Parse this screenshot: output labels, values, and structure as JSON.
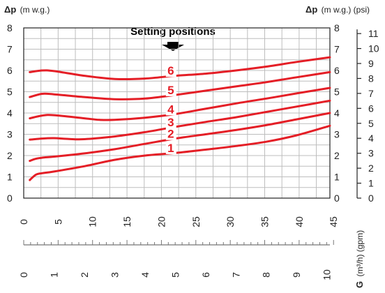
{
  "chart_data": {
    "type": "line",
    "title": "Setting positions",
    "ylabel_left_symbol": "Δp",
    "ylabel_left_unit": "(m w.g.)",
    "ylabel_right_symbol": "Δp",
    "ylabel_right_unit": "(m w.g.) (psi)",
    "xlabel_symbol": "G",
    "xlabel_unit": "(m³/h) (gpm)",
    "ylim": [
      0,
      8
    ],
    "xlim_m3h": [
      0,
      10.1
    ],
    "x_ticks_m3h": [
      "0",
      "1",
      "2",
      "3",
      "4",
      "5",
      "6",
      "7",
      "8",
      "9",
      "10"
    ],
    "x_ticks_gpm": [
      "0",
      "5",
      "10",
      "15",
      "20",
      "25",
      "30",
      "35",
      "40",
      "45"
    ],
    "gpm_per_m3h": 4.403,
    "y_ticks": [
      "0",
      "1",
      "2",
      "3",
      "4",
      "5",
      "6",
      "7",
      "8"
    ],
    "psi_ticks": [
      "0",
      "1",
      "2",
      "3",
      "4",
      "5",
      "6",
      "7",
      "8",
      "9",
      "10",
      "11"
    ],
    "psi_per_mwg": 1.4223,
    "grid": true,
    "line_color": "#e41e26",
    "series": [
      {
        "name": "1",
        "x": [
          0.2,
          0.4,
          0.6,
          1,
          2,
          3,
          4,
          5,
          6,
          7,
          8,
          9,
          10.1
        ],
        "y": [
          0.85,
          1.1,
          1.17,
          1.25,
          1.5,
          1.8,
          2.0,
          2.12,
          2.28,
          2.45,
          2.65,
          2.95,
          3.4
        ]
      },
      {
        "name": "2",
        "x": [
          0.2,
          0.4,
          0.6,
          1,
          2,
          3,
          4,
          5,
          6,
          7,
          8,
          9,
          10.1
        ],
        "y": [
          1.75,
          1.85,
          1.9,
          1.95,
          2.1,
          2.3,
          2.55,
          2.8,
          3.0,
          3.2,
          3.43,
          3.7,
          4.0
        ]
      },
      {
        "name": "3",
        "x": [
          0.2,
          0.6,
          1,
          1.5,
          2,
          3,
          4,
          5,
          6,
          7,
          8,
          9,
          10.1
        ],
        "y": [
          2.75,
          2.8,
          2.82,
          2.78,
          2.77,
          2.9,
          3.1,
          3.35,
          3.58,
          3.8,
          4.05,
          4.3,
          4.58
        ]
      },
      {
        "name": "4",
        "x": [
          0.2,
          0.6,
          1,
          2,
          2.5,
          3,
          4,
          5,
          6,
          7,
          8,
          9,
          10.1
        ],
        "y": [
          3.75,
          3.88,
          3.9,
          3.75,
          3.68,
          3.68,
          3.78,
          3.95,
          4.2,
          4.45,
          4.68,
          4.92,
          5.18
        ]
      },
      {
        "name": "5",
        "x": [
          0.2,
          0.6,
          1,
          2,
          3,
          4,
          5,
          6,
          7,
          8,
          9,
          10.1
        ],
        "y": [
          4.75,
          4.9,
          4.88,
          4.75,
          4.65,
          4.68,
          4.85,
          5.05,
          5.25,
          5.45,
          5.68,
          5.92
        ]
      },
      {
        "name": "6",
        "x": [
          0.2,
          0.6,
          1,
          2,
          3,
          4,
          5,
          6,
          7,
          8,
          9,
          10.1
        ],
        "y": [
          5.92,
          6.0,
          5.97,
          5.75,
          5.6,
          5.62,
          5.75,
          5.85,
          6.0,
          6.18,
          6.4,
          6.62
        ]
      }
    ],
    "labels": [
      {
        "text": "1",
        "x": 4.85
      },
      {
        "text": "2",
        "x": 4.85
      },
      {
        "text": "3",
        "x": 4.85
      },
      {
        "text": "4",
        "x": 4.85
      },
      {
        "text": "5",
        "x": 4.85
      },
      {
        "text": "6",
        "x": 4.85
      }
    ]
  }
}
